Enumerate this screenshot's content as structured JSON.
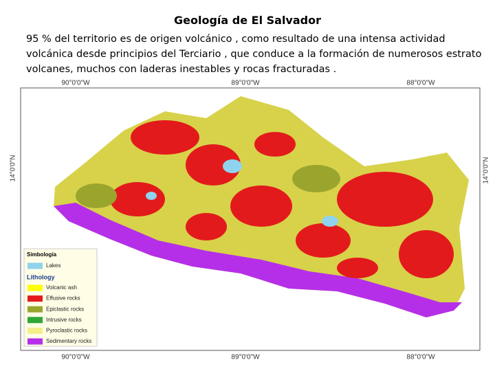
{
  "header": {
    "title": "Geología de El Salvador"
  },
  "text": {
    "lines": [
      "95 % del territorio es de origen volcánico , como resultado de una intensa actividad",
      "volcánica desde principios del Terciario , que conduce a la formación de numerosos estrato",
      "volcanes, muchos con laderas inestables y rocas fracturadas ."
    ]
  },
  "map": {
    "top_labels": [
      "90°0'0\"W",
      "89°0'0\"W",
      "88°0'0\"W"
    ],
    "bottom_labels": [
      "90°0'0\"W",
      "89°0'0\"W",
      "88°0'0\"W"
    ],
    "left_label": "14°0'0\"N",
    "right_label": "14°0'0\"N",
    "legend": {
      "title": "Simbología",
      "lakes": {
        "label": "Lakes",
        "color": "#8fd3ee"
      },
      "section": "Lithology",
      "items": [
        {
          "label": "Volcanic ash",
          "color": "#ffff00"
        },
        {
          "label": "Effusive rocks",
          "color": "#e31a1c"
        },
        {
          "label": "Epiclastic rocks",
          "color": "#9aa52e"
        },
        {
          "label": "Intrusive rocks",
          "color": "#2fa836"
        },
        {
          "label": "Pyroclastic rocks",
          "color": "#f3f08a"
        },
        {
          "label": "Sedimentary rocks",
          "color": "#b52fe8"
        }
      ]
    }
  }
}
